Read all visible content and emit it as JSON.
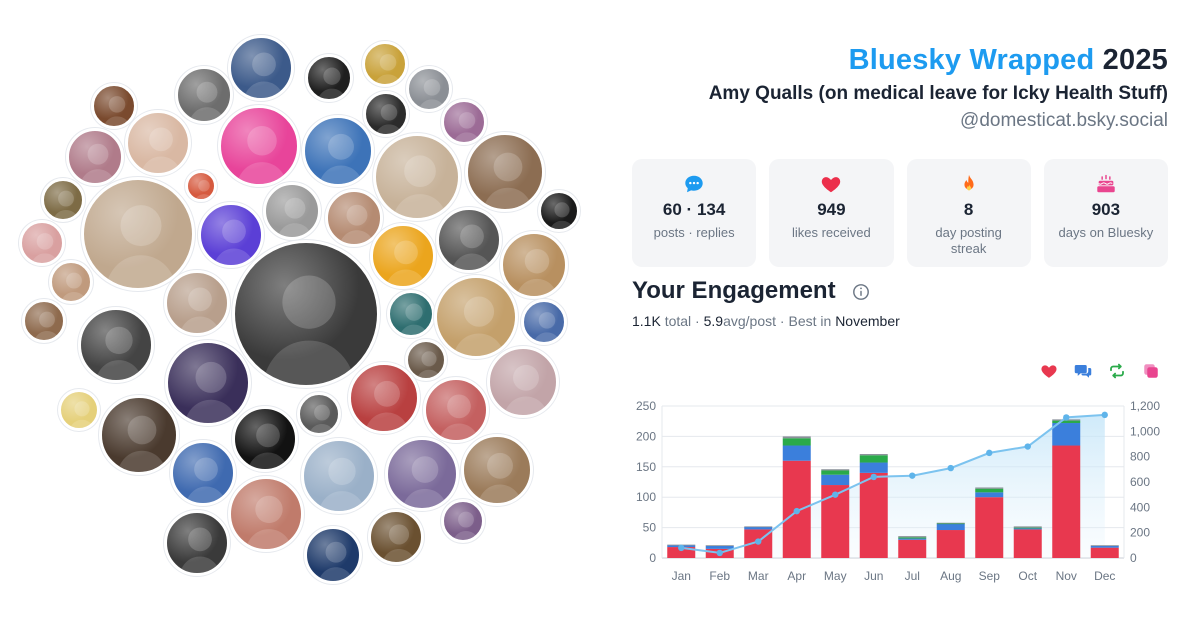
{
  "header": {
    "brand": "Bluesky Wrapped",
    "year": "2025",
    "display_name": "Amy Qualls (on medical leave for Icky Health Stuff)",
    "handle": "@domesticat.bsky.social"
  },
  "stats": [
    {
      "icon": "speech-bubble-icon",
      "value": "60 · 134",
      "label": "posts · replies",
      "color": "#1d9bf0"
    },
    {
      "icon": "heart-icon",
      "value": "949",
      "label": "likes received",
      "color": "#ec2f4b"
    },
    {
      "icon": "flame-icon",
      "value": "8",
      "label": "day posting streak",
      "color": "#ff6b1a"
    },
    {
      "icon": "cake-icon",
      "value": "903",
      "label": "days on Bluesky",
      "color": "#e9458f"
    }
  ],
  "engagement": {
    "title": "Your Engagement",
    "total_value": "1.1K",
    "total_label": "total",
    "avg_value": "5.9",
    "avg_label": "avg/post",
    "best_label": "Best in",
    "best_month": "November"
  },
  "legend": [
    {
      "name": "likes",
      "icon": "heart-icon",
      "color": "#e8384f"
    },
    {
      "name": "replies",
      "icon": "reply-icon",
      "color": "#3b7fdc"
    },
    {
      "name": "reposts",
      "icon": "repost-icon",
      "color": "#2aaa4a"
    },
    {
      "name": "quotes",
      "icon": "quote-icon",
      "color": "#e9458f"
    }
  ],
  "chart_data": {
    "type": "bar",
    "stacked": true,
    "categories": [
      "Jan",
      "Feb",
      "Mar",
      "Apr",
      "May",
      "Jun",
      "Jul",
      "Aug",
      "Sep",
      "Oct",
      "Nov",
      "Dec"
    ],
    "series": [
      {
        "color": "#e8384f",
        "values": [
          18,
          15,
          47,
          160,
          120,
          140,
          30,
          46,
          100,
          47,
          185,
          17
        ]
      },
      {
        "color": "#3b7fdc",
        "values": [
          3,
          5,
          4,
          25,
          17,
          17,
          2,
          10,
          8,
          2,
          37,
          3
        ]
      },
      {
        "color": "#2aaa4a",
        "values": [
          0,
          0,
          0,
          12,
          7,
          12,
          2,
          1,
          6,
          1,
          4,
          0
        ]
      },
      {
        "color": "#8a9099",
        "values": [
          1,
          1,
          1,
          3,
          2,
          2,
          2,
          1,
          2,
          2,
          2,
          1
        ]
      }
    ],
    "line": {
      "color": "#7cc3ef",
      "values": [
        80,
        40,
        130,
        370,
        500,
        640,
        650,
        710,
        830,
        880,
        1110,
        1130
      ]
    },
    "ylim": [
      0,
      250
    ],
    "yticks": [
      "0",
      "50",
      "100",
      "150",
      "200",
      "250"
    ],
    "y2lim": [
      0,
      1200
    ],
    "y2ticks": [
      "0",
      "200",
      "400",
      "600",
      "800",
      "1,000",
      "1,200"
    ],
    "grid": true
  },
  "avatars": [
    {
      "color": "#3c5a8a"
    },
    {
      "color": "#1f1f1f"
    },
    {
      "color": "#c9a23a"
    },
    {
      "color": "#6d6d6d"
    },
    {
      "color": "#7a4a2e"
    },
    {
      "color": "#8b8f95"
    },
    {
      "color": "#9c6b96"
    },
    {
      "color": "#3d73b8"
    },
    {
      "color": "#2b2b2b"
    },
    {
      "color": "#e8449a"
    },
    {
      "color": "#8c6d52"
    },
    {
      "color": "#d9b8a3"
    },
    {
      "color": "#b07b8a"
    },
    {
      "color": "#c7b299"
    },
    {
      "color": "#1a1a1a"
    },
    {
      "color": "#7d6b45"
    },
    {
      "color": "#d65a3f"
    },
    {
      "color": "#c0a88e"
    },
    {
      "color": "#5b3fd6"
    },
    {
      "color": "#9a9a9a"
    },
    {
      "color": "#b58b72"
    },
    {
      "color": "#eba51d"
    },
    {
      "color": "#555555"
    },
    {
      "color": "#b89060"
    },
    {
      "color": "#d9a0a0"
    },
    {
      "color": "#c09a7d"
    },
    {
      "color": "#3a3a3a"
    },
    {
      "color": "#b89f8c"
    },
    {
      "color": "#486aa8"
    },
    {
      "color": "#8e6a4d"
    },
    {
      "color": "#444444"
    },
    {
      "color": "#2e6e70"
    },
    {
      "color": "#c4a06b"
    },
    {
      "color": "#6a5a4a"
    },
    {
      "color": "#3a2f5a"
    },
    {
      "color": "#b94040"
    },
    {
      "color": "#c2a4a8"
    },
    {
      "color": "#e5d07a"
    },
    {
      "color": "#4a3a2e"
    },
    {
      "color": "#121212"
    },
    {
      "color": "#5a5a5a"
    },
    {
      "color": "#c46060"
    },
    {
      "color": "#3f6ab0"
    },
    {
      "color": "#9ab0c8"
    },
    {
      "color": "#7b6a9a"
    },
    {
      "color": "#9b7b5a"
    },
    {
      "color": "#c07b6b"
    },
    {
      "color": "#7c5e8a"
    },
    {
      "color": "#3a3a3a"
    },
    {
      "color": "#6a5030"
    },
    {
      "color": "#1e3a6a"
    },
    {
      "color": "#5a4a3a"
    },
    {
      "color": "#8a6a9a"
    },
    {
      "color": "#d04848"
    },
    {
      "color": "#a0a8b8"
    }
  ]
}
